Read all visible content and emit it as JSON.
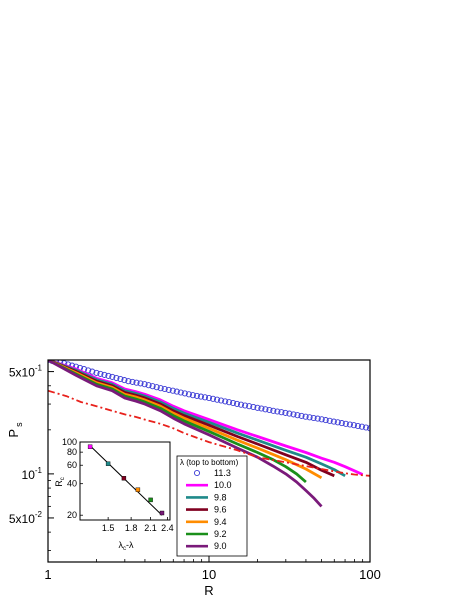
{
  "chart_data": {
    "type": "line",
    "title": "",
    "xlabel": "R",
    "ylabel": "P",
    "ylabel_sub": "s",
    "xscale": "log",
    "yscale": "log",
    "xlim": [
      1,
      100
    ],
    "ylim": [
      0.025,
      0.6
    ],
    "xticks": [
      {
        "value": 1,
        "label": "1"
      },
      {
        "value": 10,
        "label": "10"
      },
      {
        "value": 100,
        "label": "100"
      }
    ],
    "yticks": [
      {
        "value": 0.05,
        "base": "5x10",
        "exp": "-2"
      },
      {
        "value": 0.1,
        "base": "10",
        "exp": "-1"
      },
      {
        "value": 0.5,
        "base": "5x10",
        "exp": "-1"
      }
    ],
    "grid": false,
    "legend": {
      "title": "λ (top to bottom)",
      "placement": "lower-center",
      "entries": [
        "11.3",
        "10.0",
        "9.8",
        "9.6",
        "9.4",
        "9.2",
        "9.0"
      ]
    },
    "series": [
      {
        "name": "11.3",
        "color": "#3b3bd6",
        "marker": "open-circle",
        "x": [
          1,
          1.26,
          1.58,
          2,
          2.51,
          3.16,
          3.98,
          5.01,
          6.31,
          7.94,
          10,
          12.6,
          15.8,
          20,
          25.1,
          31.6,
          39.8,
          50.1,
          63.1,
          79.4,
          100
        ],
        "y": [
          0.6,
          0.57,
          0.53,
          0.49,
          0.46,
          0.43,
          0.41,
          0.385,
          0.365,
          0.345,
          0.33,
          0.313,
          0.297,
          0.283,
          0.27,
          0.258,
          0.246,
          0.236,
          0.225,
          0.215,
          0.205
        ]
      },
      {
        "name": "10.0",
        "color": "#ff00ff",
        "x": [
          1,
          1.5,
          2,
          2.5,
          3,
          3.5,
          4,
          5,
          6,
          7,
          10,
          15,
          20,
          30,
          40,
          50,
          60,
          70,
          80,
          90
        ],
        "y": [
          0.6,
          0.52,
          0.45,
          0.42,
          0.38,
          0.365,
          0.35,
          0.32,
          0.29,
          0.27,
          0.235,
          0.2,
          0.18,
          0.155,
          0.14,
          0.128,
          0.12,
          0.112,
          0.105,
          0.099
        ]
      },
      {
        "name": "9.8",
        "color": "#1f8a8a",
        "x": [
          1,
          1.5,
          2,
          2.5,
          3,
          3.5,
          4,
          5,
          6,
          7,
          10,
          15,
          20,
          30,
          40,
          50,
          60,
          70
        ],
        "y": [
          0.6,
          0.51,
          0.44,
          0.41,
          0.37,
          0.355,
          0.34,
          0.31,
          0.28,
          0.26,
          0.225,
          0.19,
          0.17,
          0.145,
          0.13,
          0.117,
          0.107,
          0.097
        ]
      },
      {
        "name": "9.6",
        "color": "#800020",
        "x": [
          1,
          1.5,
          2,
          2.5,
          3,
          3.5,
          4,
          5,
          6,
          7,
          10,
          15,
          20,
          30,
          40,
          50,
          60
        ],
        "y": [
          0.6,
          0.5,
          0.43,
          0.4,
          0.36,
          0.345,
          0.33,
          0.3,
          0.27,
          0.25,
          0.215,
          0.18,
          0.16,
          0.135,
          0.12,
          0.106,
          0.097
        ]
      },
      {
        "name": "9.4",
        "color": "#ff8c00",
        "x": [
          1,
          1.5,
          2,
          2.5,
          3,
          3.5,
          4,
          5,
          6,
          7,
          10,
          15,
          20,
          30,
          40,
          50
        ],
        "y": [
          0.6,
          0.49,
          0.42,
          0.39,
          0.35,
          0.335,
          0.32,
          0.29,
          0.26,
          0.24,
          0.205,
          0.17,
          0.15,
          0.125,
          0.108,
          0.094
        ]
      },
      {
        "name": "9.2",
        "color": "#1a8f1a",
        "x": [
          1,
          1.5,
          2,
          2.5,
          3,
          3.5,
          4,
          5,
          6,
          7,
          10,
          15,
          20,
          25,
          30,
          35,
          40
        ],
        "y": [
          0.6,
          0.48,
          0.41,
          0.38,
          0.34,
          0.325,
          0.31,
          0.28,
          0.25,
          0.23,
          0.195,
          0.16,
          0.14,
          0.125,
          0.112,
          0.1,
          0.088
        ]
      },
      {
        "name": "9.0",
        "color": "#7a1a7a",
        "x": [
          1,
          1.5,
          2,
          2.5,
          3,
          3.5,
          4,
          5,
          6,
          7,
          10,
          15,
          20,
          25,
          30,
          35,
          40,
          45,
          50
        ],
        "y": [
          0.6,
          0.47,
          0.4,
          0.37,
          0.33,
          0.315,
          0.3,
          0.27,
          0.24,
          0.22,
          0.185,
          0.15,
          0.13,
          0.113,
          0.1,
          0.088,
          0.077,
          0.068,
          0.06
        ]
      },
      {
        "name": "",
        "color": "#e8211c",
        "dash": "dash-dot",
        "x": [
          1,
          1.3,
          1.6,
          2,
          2.5,
          3,
          3.5,
          4,
          5,
          6,
          7,
          8,
          10,
          15,
          20,
          30,
          40,
          50,
          60,
          70,
          80,
          90,
          100
        ],
        "y": [
          0.37,
          0.34,
          0.31,
          0.29,
          0.27,
          0.255,
          0.245,
          0.235,
          0.22,
          0.205,
          0.19,
          0.18,
          0.165,
          0.145,
          0.13,
          0.12,
          0.113,
          0.108,
          0.104,
          0.101,
          0.099,
          0.098,
          0.097
        ]
      }
    ],
    "inset": {
      "type": "scatter",
      "xlabel": "λ",
      "xlabel_sub1": "c",
      "xlabel_mid": "-λ",
      "ylabel": "R",
      "ylabel_sub": "c",
      "xscale": "log",
      "yscale": "log",
      "xlim": [
        1.2,
        2.45
      ],
      "ylim": [
        18,
        100
      ],
      "xticks": [
        "1.5",
        "1.8",
        "2.1",
        "2.4"
      ],
      "yticks": [
        "20",
        "40",
        "60",
        "80",
        "100"
      ],
      "fit_line": {
        "x": [
          1.3,
          2.3
        ],
        "y": [
          92,
          20
        ]
      },
      "points": [
        {
          "x": 1.3,
          "y": 90,
          "color": "#ff00ff"
        },
        {
          "x": 1.5,
          "y": 62,
          "color": "#1f8a8a"
        },
        {
          "x": 1.7,
          "y": 45,
          "color": "#800020"
        },
        {
          "x": 1.9,
          "y": 35,
          "color": "#ff8c00"
        },
        {
          "x": 2.1,
          "y": 28,
          "color": "#1a8f1a"
        },
        {
          "x": 2.3,
          "y": 21,
          "color": "#7a1a7a"
        }
      ]
    }
  }
}
